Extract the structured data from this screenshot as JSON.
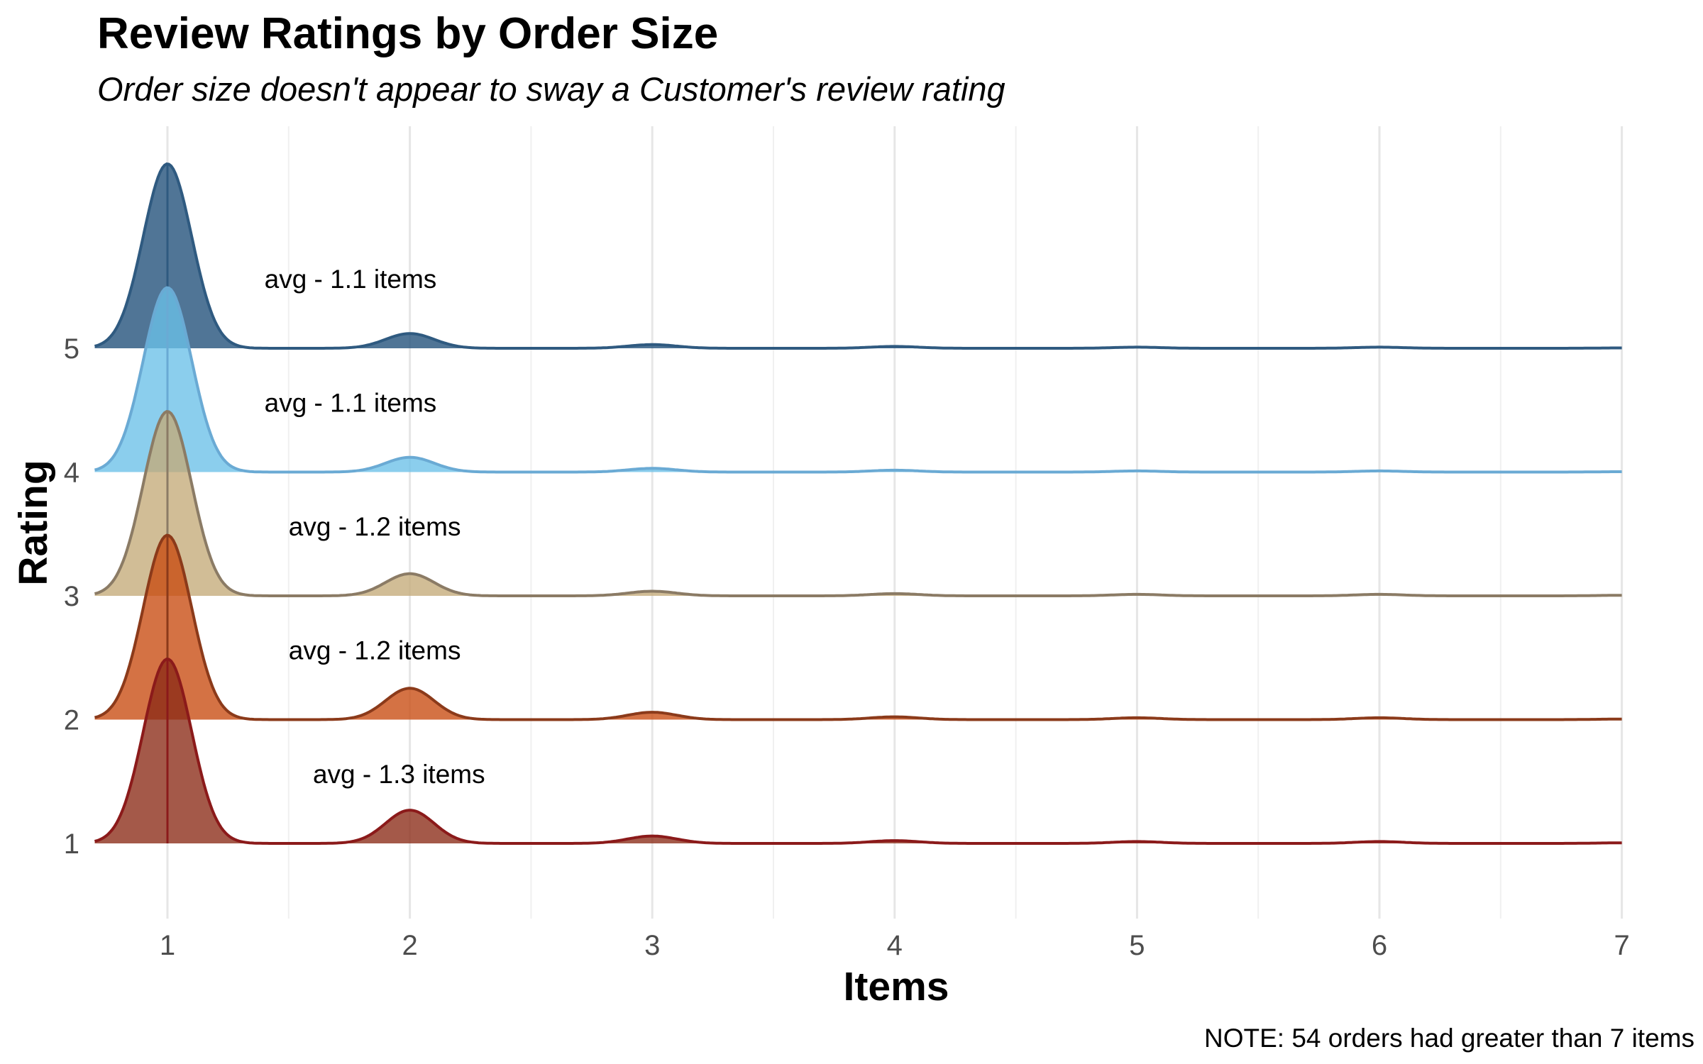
{
  "chart_data": {
    "type": "ridgeline",
    "title": "Review Ratings by Order Size",
    "subtitle": "Order size doesn't appear to sway a Customer's review rating",
    "xlabel": "Items",
    "ylabel": "Rating",
    "xlim": [
      0.7,
      7
    ],
    "x_ticks": [
      "1",
      "2",
      "3",
      "4",
      "5",
      "6",
      "7"
    ],
    "y_ticks": [
      "1",
      "2",
      "3",
      "4",
      "5"
    ],
    "grid": "vertical",
    "note": "NOTE: 54 orders had greater than 7 items",
    "series": [
      {
        "name": "1",
        "color": "#8b2a16",
        "line_color": "#8b1a1a",
        "mean": 1.3,
        "label": "avg - 1.3 items",
        "density": [
          [
            1,
            1.0
          ],
          [
            2,
            0.18
          ],
          [
            3,
            0.04
          ],
          [
            4,
            0.015
          ],
          [
            5,
            0.01
          ],
          [
            6,
            0.01
          ],
          [
            7,
            0.003
          ]
        ]
      },
      {
        "name": "2",
        "color": "#c84a10",
        "line_color": "#8b3a1a",
        "mean": 1.2,
        "label": "avg - 1.2 items",
        "density": [
          [
            1,
            1.0
          ],
          [
            2,
            0.17
          ],
          [
            3,
            0.04
          ],
          [
            4,
            0.015
          ],
          [
            5,
            0.01
          ],
          [
            6,
            0.01
          ],
          [
            7,
            0.003
          ]
        ]
      },
      {
        "name": "3",
        "color": "#c4ab78",
        "line_color": "#8b7b65",
        "mean": 1.2,
        "label": "avg - 1.2 items",
        "density": [
          [
            1,
            1.0
          ],
          [
            2,
            0.12
          ],
          [
            3,
            0.025
          ],
          [
            4,
            0.012
          ],
          [
            5,
            0.008
          ],
          [
            6,
            0.008
          ],
          [
            7,
            0.003
          ]
        ]
      },
      {
        "name": "4",
        "color": "#6ac0e8",
        "line_color": "#6aaad4",
        "mean": 1.1,
        "label": "avg - 1.1 items",
        "density": [
          [
            1,
            1.0
          ],
          [
            2,
            0.08
          ],
          [
            3,
            0.02
          ],
          [
            4,
            0.01
          ],
          [
            5,
            0.006
          ],
          [
            6,
            0.006
          ],
          [
            7,
            0.002
          ]
        ]
      },
      {
        "name": "5",
        "color": "#1f4e79",
        "line_color": "#2f5a80",
        "mean": 1.1,
        "label": "avg - 1.1 items",
        "density": [
          [
            1,
            1.0
          ],
          [
            2,
            0.08
          ],
          [
            3,
            0.02
          ],
          [
            4,
            0.01
          ],
          [
            5,
            0.006
          ],
          [
            6,
            0.006
          ],
          [
            7,
            0.002
          ]
        ]
      }
    ]
  }
}
